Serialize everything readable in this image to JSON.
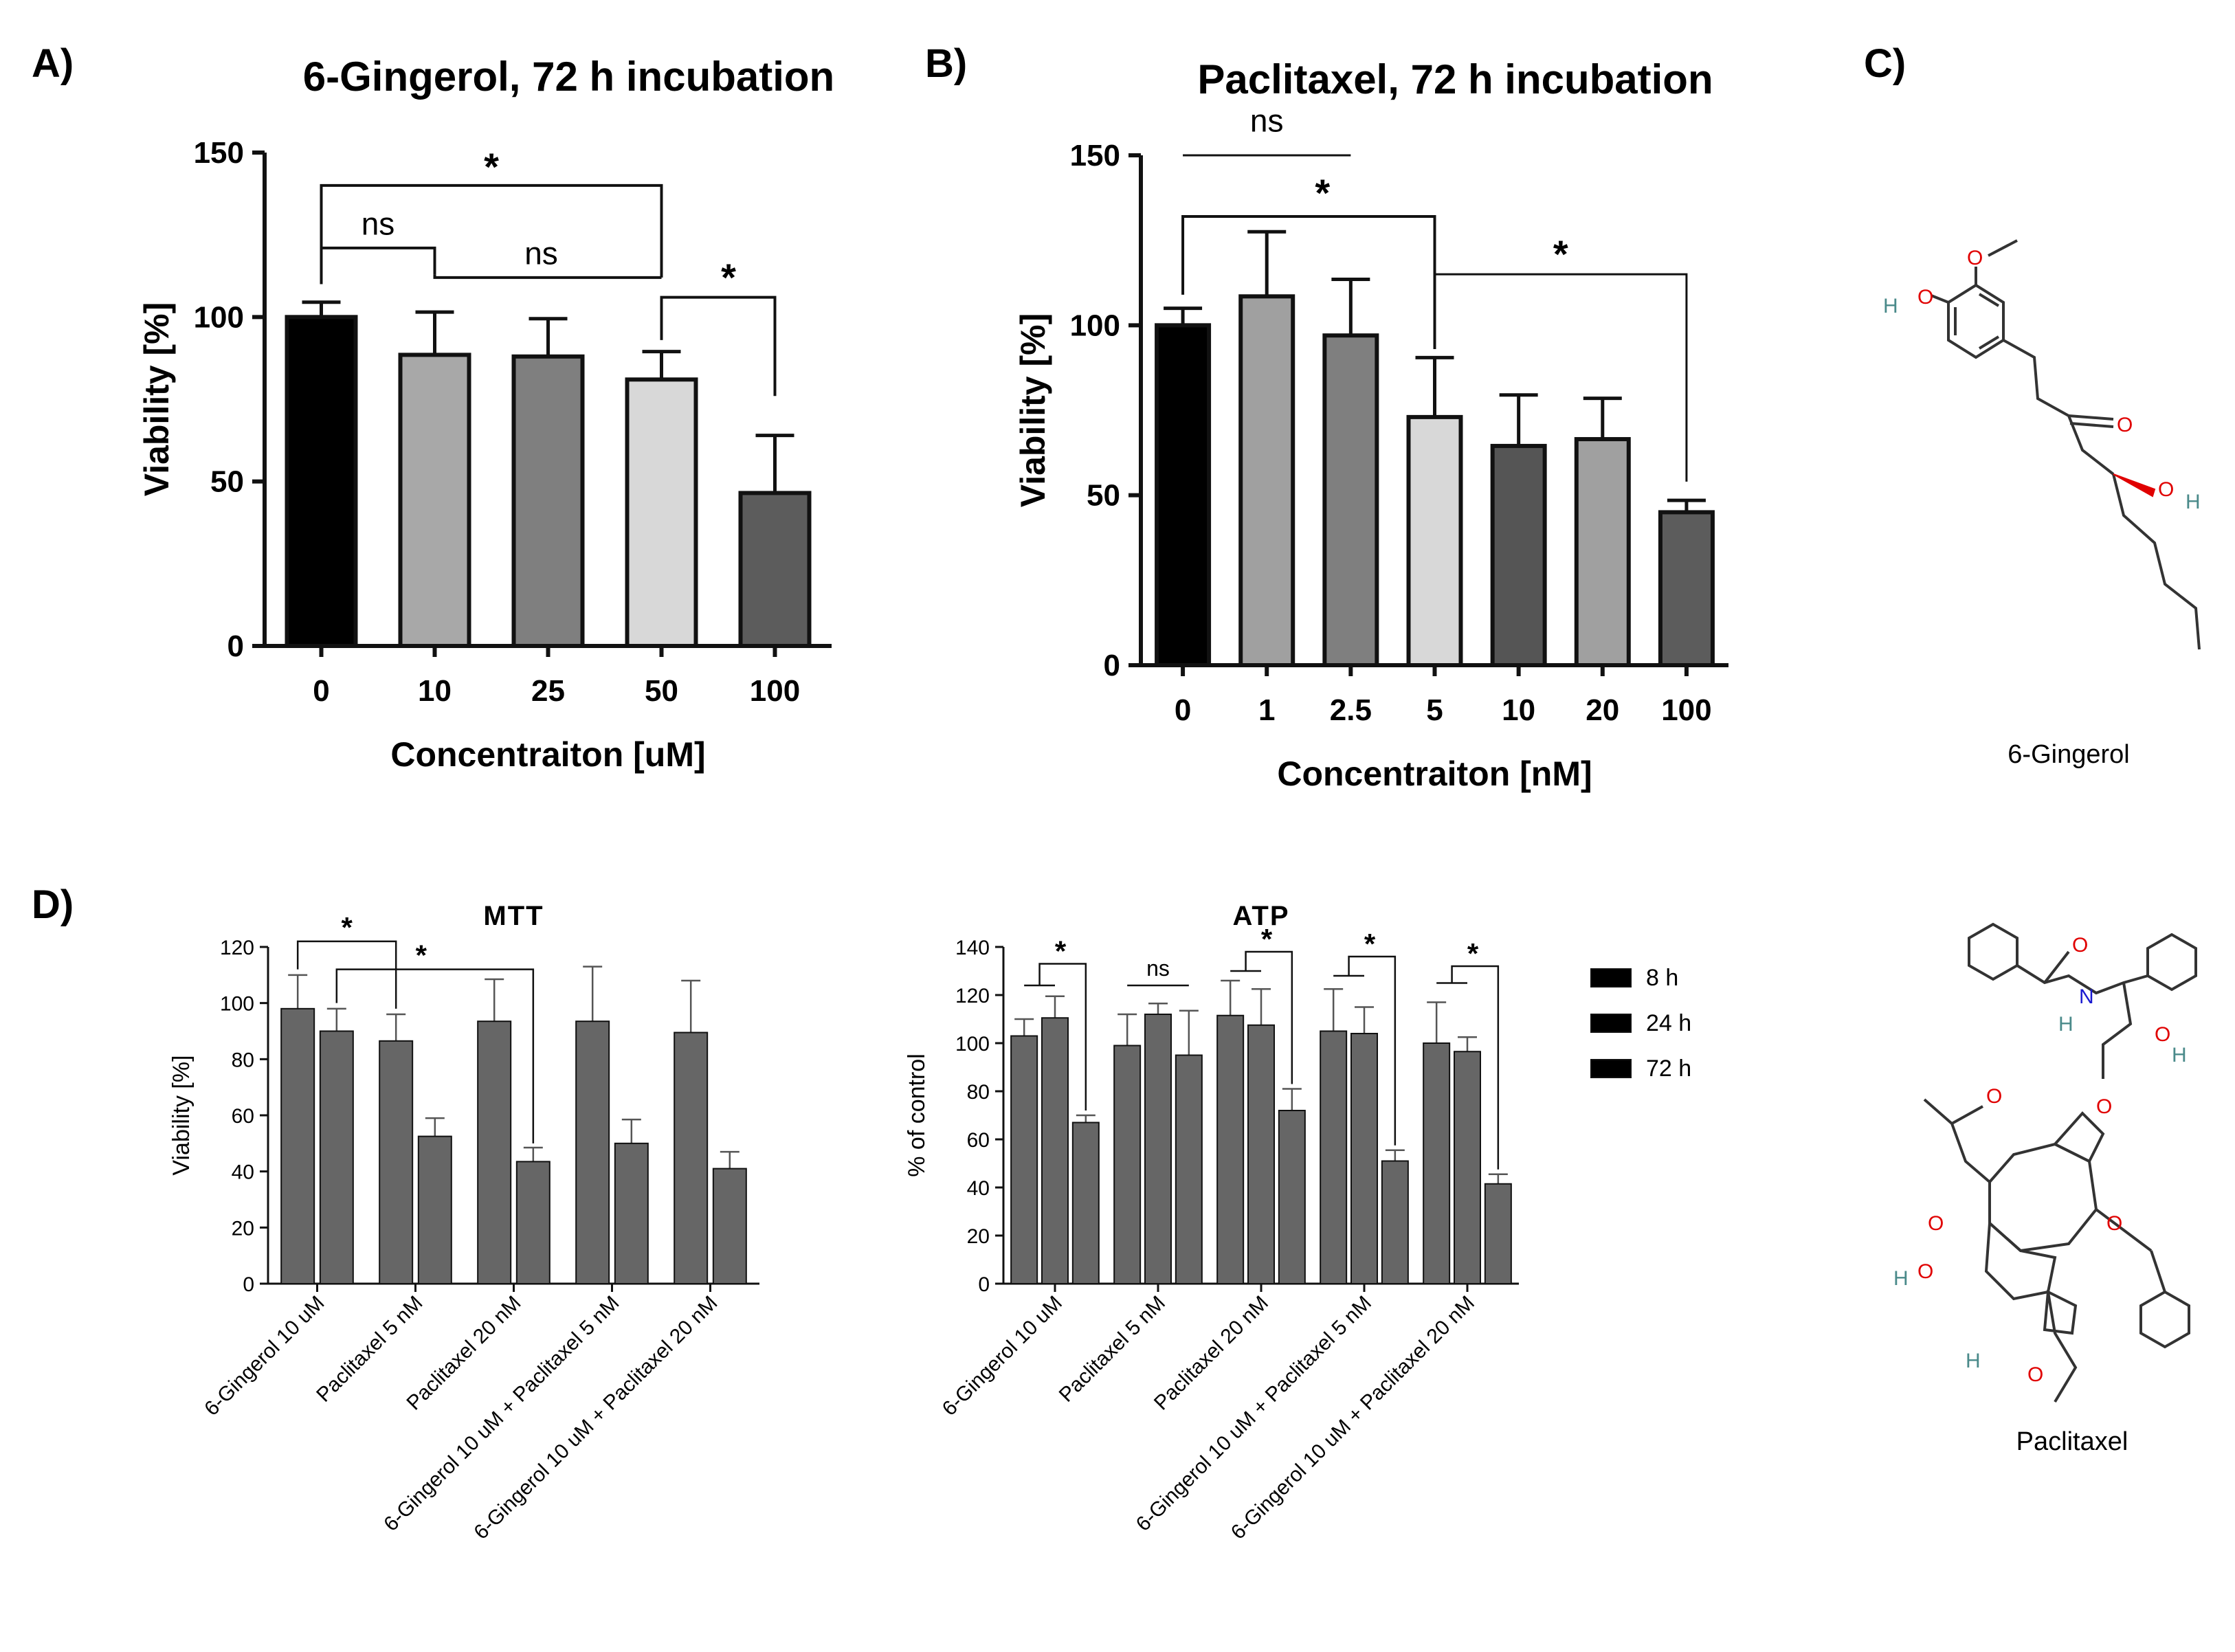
{
  "panel_letters": {
    "a": "A)",
    "b": "B)",
    "c": "C)",
    "d": "D)"
  },
  "structures": {
    "gingerol_label": "6-Gingerol",
    "paclitaxel_label": "Paclitaxel",
    "atoms": {
      "O": "O",
      "H": "H",
      "N": "N"
    }
  },
  "colors": {
    "8h": "#1a1a80",
    "24h": "#a0134f",
    "72h": "#0b5b0b"
  },
  "chart_data": [
    {
      "id": "A",
      "type": "bar",
      "title": "6-Gingerol, 72 h incubation",
      "xlabel": "Concentraiton [uM]",
      "ylabel": "Viability [%]",
      "ylim": [
        0,
        150
      ],
      "yticks": [
        "0",
        "50",
        "100",
        "150"
      ],
      "categories": [
        "0",
        "10",
        "25",
        "50",
        "100"
      ],
      "values": [
        100,
        88.5,
        88,
        81,
        46.5
      ],
      "errors": [
        4.5,
        13,
        11.5,
        8.5,
        17.5
      ],
      "bar_colors": [
        "#000000",
        "#a8a8a8",
        "#7f7f7f",
        "#d8d8d8",
        "#5c5c5c"
      ],
      "annotations": [
        "*",
        "ns",
        "ns",
        "*"
      ]
    },
    {
      "id": "B",
      "type": "bar",
      "title": "Paclitaxel, 72 h incubation",
      "xlabel": "Concentraiton [nM]",
      "ylabel": "Viability [%]",
      "ylim": [
        0,
        150
      ],
      "yticks": [
        "0",
        "50",
        "100",
        "150"
      ],
      "categories": [
        "0",
        "1",
        "2.5",
        "5",
        "10",
        "20",
        "100"
      ],
      "values": [
        100,
        108.5,
        97,
        73,
        64.5,
        66.5,
        45
      ],
      "errors": [
        5,
        19,
        16.5,
        17.5,
        15,
        12,
        3.5
      ],
      "bar_colors": [
        "#000000",
        "#a0a0a0",
        "#7f7f7f",
        "#d8d8d8",
        "#555555",
        "#a0a0a0",
        "#5c5c5c"
      ],
      "annotations": [
        "ns",
        "*",
        "*"
      ]
    },
    {
      "id": "D-MTT",
      "type": "bar",
      "title": "MTT",
      "ylabel": "Viability [%]",
      "ylim": [
        0,
        120
      ],
      "yticks": [
        "0",
        "20",
        "40",
        "60",
        "80",
        "100",
        "120"
      ],
      "categories": [
        "6-Gingerol 10 uM",
        "Paclitaxel 5 nM",
        "Paclitaxel 20 nM",
        "6-Gingerol 10 uM + Paclitaxel 5 nM",
        "6-Gingerol 10 uM + Paclitaxel 20 nM"
      ],
      "series": [
        {
          "name": "24 h",
          "values": [
            98,
            86.5,
            93.5,
            93.5,
            89.5
          ],
          "errors": [
            12,
            9.5,
            15,
            19.5,
            18.5
          ]
        },
        {
          "name": "72 h",
          "values": [
            90,
            52.5,
            43.5,
            50,
            41
          ],
          "errors": [
            8,
            6.5,
            5,
            8.5,
            6
          ]
        }
      ],
      "annotations": [
        "*",
        "*"
      ]
    },
    {
      "id": "D-ATP",
      "type": "bar",
      "title": "ATP",
      "ylabel": "% of control",
      "ylim": [
        0,
        140
      ],
      "yticks": [
        "0",
        "20",
        "40",
        "60",
        "80",
        "100",
        "120",
        "140"
      ],
      "categories": [
        "6-Gingerol 10 uM",
        "Paclitaxel 5 nM",
        "Paclitaxel 20 nM",
        "6-Gingerol 10 uM + Paclitaxel 5 nM",
        "6-Gingerol 10 uM + Paclitaxel 20 nM"
      ],
      "series": [
        {
          "name": "8 h",
          "values": [
            103,
            99,
            111.5,
            105,
            100
          ],
          "errors": [
            7,
            13,
            14.5,
            17.5,
            17
          ]
        },
        {
          "name": "24 h",
          "values": [
            110.5,
            112,
            107.5,
            104,
            96.5
          ],
          "errors": [
            9,
            4.5,
            15,
            11,
            6
          ]
        },
        {
          "name": "72 h",
          "values": [
            67,
            95,
            72,
            51,
            41.5
          ],
          "errors": [
            3,
            18.5,
            9,
            4.5,
            4
          ]
        }
      ],
      "legend": [
        "8 h",
        "24 h",
        "72 h"
      ],
      "annotations": [
        "*",
        "ns",
        "*",
        "*",
        "*"
      ]
    }
  ]
}
